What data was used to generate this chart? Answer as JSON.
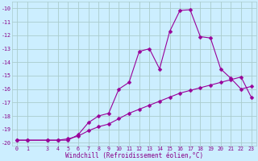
{
  "xlabel": "Windchill (Refroidissement éolien,°C)",
  "x_ticks": [
    0,
    1,
    3,
    4,
    5,
    6,
    7,
    8,
    9,
    10,
    11,
    12,
    13,
    14,
    15,
    16,
    17,
    18,
    19,
    20,
    21,
    22,
    23
  ],
  "line1_x": [
    0,
    1,
    3,
    4,
    5,
    6,
    7,
    8,
    9,
    10,
    11,
    12,
    13,
    14,
    15,
    16,
    17,
    18,
    19,
    20,
    21,
    22,
    23
  ],
  "line1_y": [
    -19.8,
    -19.8,
    -19.8,
    -19.8,
    -19.8,
    -19.4,
    -18.5,
    -18.0,
    -17.8,
    -16.0,
    -15.5,
    -13.2,
    -13.0,
    -14.5,
    -11.7,
    -10.15,
    -10.1,
    -12.1,
    -12.2,
    -14.5,
    -15.2,
    -16.0,
    -15.8
  ],
  "line2_x": [
    0,
    1,
    3,
    4,
    5,
    6,
    7,
    8,
    9,
    10,
    11,
    12,
    13,
    14,
    15,
    16,
    17,
    18,
    19,
    20,
    21,
    22,
    23
  ],
  "line2_y": [
    -19.8,
    -19.8,
    -19.8,
    -19.8,
    -19.7,
    -19.5,
    -19.1,
    -18.8,
    -18.6,
    -18.2,
    -17.8,
    -17.5,
    -17.2,
    -16.9,
    -16.6,
    -16.3,
    -16.1,
    -15.9,
    -15.7,
    -15.5,
    -15.3,
    -15.1,
    -16.6
  ],
  "ylim": [
    -20.2,
    -9.5
  ],
  "xlim": [
    -0.5,
    23.5
  ],
  "yticks": [
    -20,
    -19,
    -18,
    -17,
    -16,
    -15,
    -14,
    -13,
    -12,
    -11,
    -10
  ],
  "line_color": "#990099",
  "bg_color": "#cceeff",
  "grid_color": "#aacccc",
  "marker": "D",
  "marker_size": 2.5,
  "linewidth": 0.8,
  "font_color": "#880088",
  "tick_fontsize": 4.8,
  "xlabel_fontsize": 5.5
}
